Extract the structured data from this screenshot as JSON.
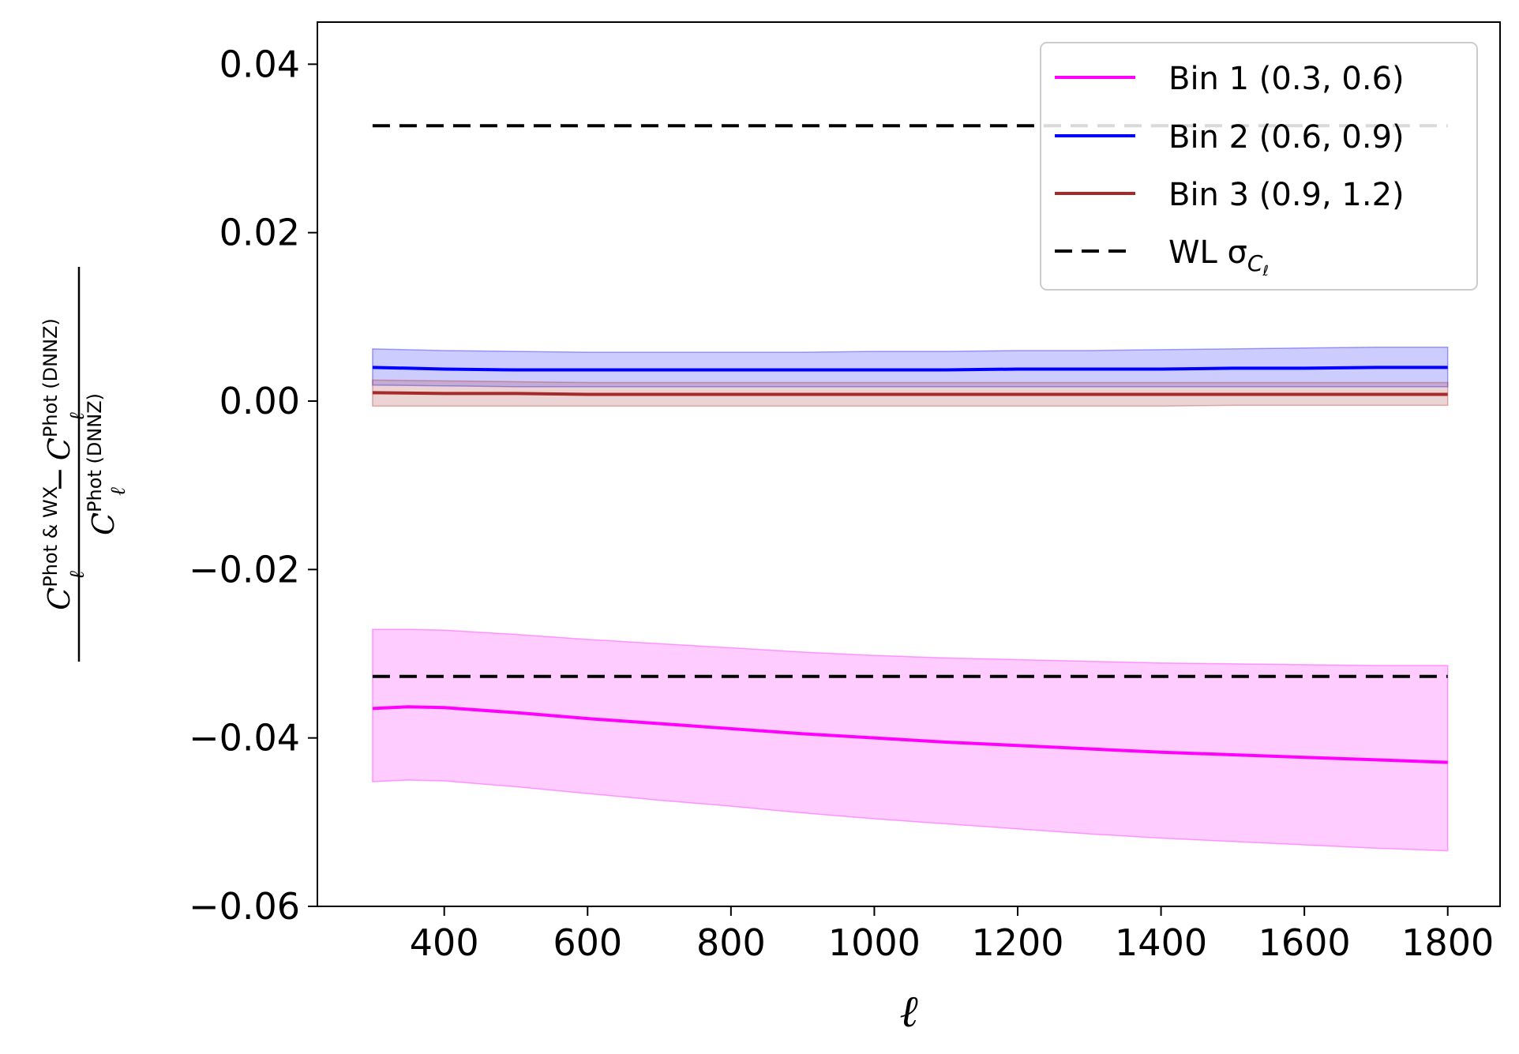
{
  "chart_data": {
    "type": "line",
    "title": "",
    "xlabel": "ℓ",
    "ylabel": {
      "numerator_left": "C",
      "numerator_left_sub": "ℓ",
      "numerator_left_sup": "Phot & WX",
      "minus": "−",
      "numerator_right": "C",
      "numerator_right_sub": "ℓ",
      "numerator_right_sup": "Phot (DNNZ)",
      "denominator": "C",
      "denominator_sub": "ℓ",
      "denominator_sup": "Phot (DNNZ)"
    },
    "xlim": [
      223,
      1873
    ],
    "ylim": [
      -0.06,
      0.045
    ],
    "x_ticks": [
      400,
      600,
      800,
      1000,
      1200,
      1400,
      1600,
      1800
    ],
    "x_tick_labels": [
      "400",
      "600",
      "800",
      "1000",
      "1200",
      "1400",
      "1600",
      "1800"
    ],
    "y_ticks": [
      0.04,
      0.02,
      0.0,
      -0.02,
      -0.04,
      -0.06
    ],
    "y_tick_labels": [
      "0.04",
      "0.02",
      "0.00",
      "−0.02",
      "−0.04",
      "−0.06"
    ],
    "grid": false,
    "legend_position": "top-right",
    "series": [
      {
        "name": "Bin 1 (0.3, 0.6)",
        "color": "#ff00ff",
        "x": [
          300,
          350,
          400,
          500,
          600,
          700,
          800,
          900,
          1000,
          1100,
          1200,
          1300,
          1400,
          1500,
          1600,
          1700,
          1800
        ],
        "y": [
          -0.0365,
          -0.0363,
          -0.0364,
          -0.037,
          -0.0377,
          -0.0383,
          -0.0389,
          -0.0395,
          -0.04,
          -0.0405,
          -0.0409,
          -0.0413,
          -0.0417,
          -0.042,
          -0.0423,
          -0.0426,
          -0.0429
        ],
        "band_lower": [
          -0.0452,
          -0.045,
          -0.0451,
          -0.0458,
          -0.0466,
          -0.0474,
          -0.0481,
          -0.0489,
          -0.0496,
          -0.0502,
          -0.0508,
          -0.0514,
          -0.0519,
          -0.0523,
          -0.0527,
          -0.0531,
          -0.0534
        ],
        "band_upper": [
          -0.0271,
          -0.0271,
          -0.0272,
          -0.0277,
          -0.0283,
          -0.0288,
          -0.0293,
          -0.0298,
          -0.0302,
          -0.0305,
          -0.0307,
          -0.0309,
          -0.0311,
          -0.0312,
          -0.0313,
          -0.0314,
          -0.0314
        ]
      },
      {
        "name": "Bin 2 (0.6, 0.9)",
        "color": "#0000ff",
        "x": [
          300,
          400,
          500,
          600,
          700,
          800,
          900,
          1000,
          1100,
          1200,
          1300,
          1400,
          1500,
          1600,
          1700,
          1800
        ],
        "y": [
          0.004,
          0.0038,
          0.0037,
          0.0037,
          0.0037,
          0.0037,
          0.0037,
          0.0037,
          0.0037,
          0.0038,
          0.0038,
          0.0038,
          0.0039,
          0.0039,
          0.004,
          0.004
        ],
        "band_lower": [
          0.0019,
          0.0018,
          0.0017,
          0.0017,
          0.0017,
          0.0017,
          0.0017,
          0.0017,
          0.0017,
          0.0017,
          0.0017,
          0.0017,
          0.0017,
          0.0017,
          0.0017,
          0.0017
        ],
        "band_upper": [
          0.0062,
          0.006,
          0.0059,
          0.0058,
          0.0058,
          0.0058,
          0.0058,
          0.0059,
          0.0059,
          0.006,
          0.006,
          0.0061,
          0.0062,
          0.0063,
          0.0064,
          0.0064
        ]
      },
      {
        "name": "Bin 3 (0.9, 1.2)",
        "color": "#a52a2a",
        "x": [
          300,
          400,
          500,
          600,
          700,
          800,
          900,
          1000,
          1100,
          1200,
          1300,
          1400,
          1500,
          1600,
          1700,
          1800
        ],
        "y": [
          0.001,
          0.0009,
          0.0009,
          0.0008,
          0.0008,
          0.0008,
          0.0008,
          0.0008,
          0.0008,
          0.0008,
          0.0008,
          0.0008,
          0.0008,
          0.0008,
          0.0008,
          0.0008
        ],
        "band_lower": [
          -0.0006,
          -0.0006,
          -0.0006,
          -0.0006,
          -0.0006,
          -0.0006,
          -0.0006,
          -0.0006,
          -0.0006,
          -0.0006,
          -0.0006,
          -0.0006,
          -0.0005,
          -0.0005,
          -0.0005,
          -0.0005
        ],
        "band_upper": [
          0.0025,
          0.0024,
          0.0023,
          0.0022,
          0.0022,
          0.0022,
          0.0022,
          0.0022,
          0.0022,
          0.0022,
          0.0022,
          0.0022,
          0.0022,
          0.0022,
          0.0022,
          0.0022
        ]
      },
      {
        "name": "WL σ",
        "name_sub": "C",
        "name_sub_sub": "ℓ",
        "color": "#000000",
        "dashed": true,
        "x": [
          300,
          1800
        ],
        "y_upper": [
          0.0327,
          0.0327
        ],
        "y_lower": [
          -0.0327,
          -0.0327
        ]
      }
    ]
  }
}
